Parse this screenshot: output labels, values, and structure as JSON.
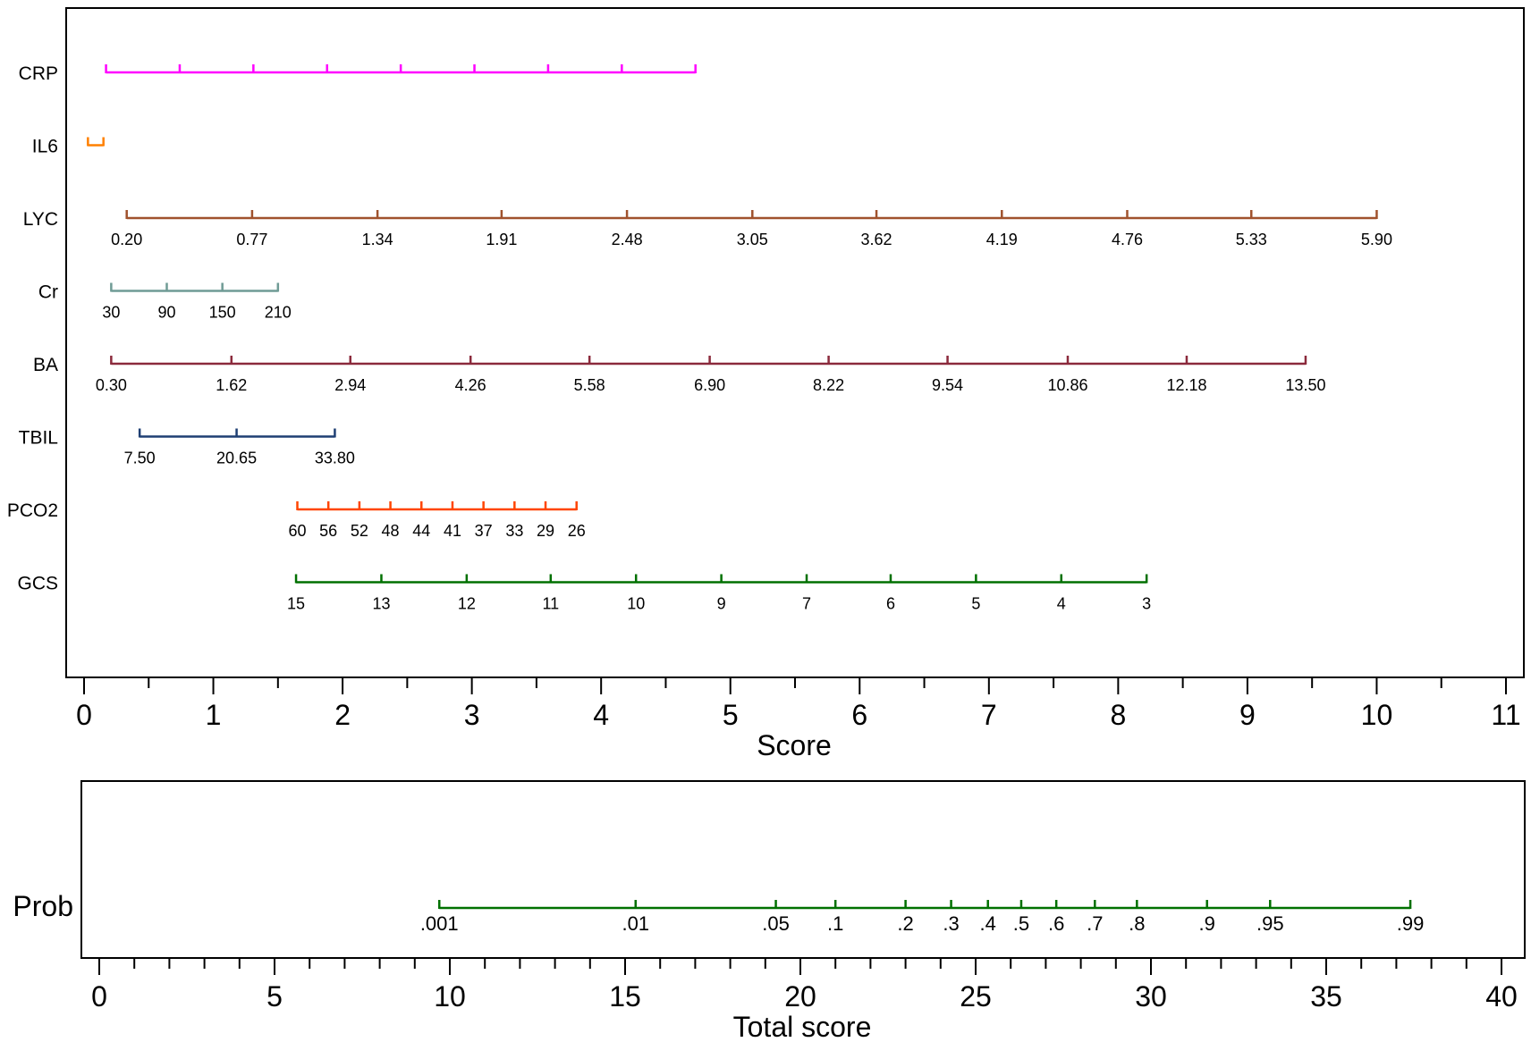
{
  "chart_data": [
    {
      "type": "nomogram",
      "xlabel": "Score",
      "xlim": [
        0,
        11
      ],
      "axis_ticks": [
        0,
        1,
        2,
        3,
        4,
        5,
        6,
        7,
        8,
        9,
        10,
        11
      ],
      "variables": [
        {
          "name": "CRP",
          "color": "#ff00ff",
          "ticks": [
            {
              "score": 0.17,
              "label": ""
            },
            {
              "score": 0.74,
              "label": ""
            },
            {
              "score": 1.31,
              "label": ""
            },
            {
              "score": 1.88,
              "label": ""
            },
            {
              "score": 2.45,
              "label": ""
            },
            {
              "score": 3.02,
              "label": ""
            },
            {
              "score": 3.59,
              "label": ""
            },
            {
              "score": 4.16,
              "label": ""
            },
            {
              "score": 4.73,
              "label": ""
            }
          ]
        },
        {
          "name": "IL6",
          "color": "#ff8000",
          "ticks": [
            {
              "score": 0.03,
              "label": ""
            },
            {
              "score": 0.15,
              "label": ""
            }
          ]
        },
        {
          "name": "LYC",
          "color": "#a0522d",
          "ticks": [
            {
              "score": 0.33,
              "label": "0.20"
            },
            {
              "score": 1.3,
              "label": "0.77"
            },
            {
              "score": 2.27,
              "label": "1.34"
            },
            {
              "score": 3.23,
              "label": "1.91"
            },
            {
              "score": 4.2,
              "label": "2.48"
            },
            {
              "score": 5.17,
              "label": "3.05"
            },
            {
              "score": 6.13,
              "label": "3.62"
            },
            {
              "score": 7.1,
              "label": "4.19"
            },
            {
              "score": 8.07,
              "label": "4.76"
            },
            {
              "score": 9.03,
              "label": "5.33"
            },
            {
              "score": 10.0,
              "label": "5.90"
            }
          ]
        },
        {
          "name": "Cr",
          "color": "#6f9b95",
          "ticks": [
            {
              "score": 0.21,
              "label": "30"
            },
            {
              "score": 0.64,
              "label": "90"
            },
            {
              "score": 1.07,
              "label": "150"
            },
            {
              "score": 1.5,
              "label": "210"
            }
          ]
        },
        {
          "name": "BA",
          "color": "#8b2a3c",
          "ticks": [
            {
              "score": 0.21,
              "label": "0.30"
            },
            {
              "score": 1.14,
              "label": "1.62"
            },
            {
              "score": 2.06,
              "label": "2.94"
            },
            {
              "score": 2.99,
              "label": "4.26"
            },
            {
              "score": 3.91,
              "label": "5.58"
            },
            {
              "score": 4.84,
              "label": "6.90"
            },
            {
              "score": 5.76,
              "label": "8.22"
            },
            {
              "score": 6.68,
              "label": "9.54"
            },
            {
              "score": 7.61,
              "label": "10.86"
            },
            {
              "score": 8.53,
              "label": "12.18"
            },
            {
              "score": 9.45,
              "label": "13.50"
            }
          ]
        },
        {
          "name": "TBIL",
          "color": "#1f3f73",
          "ticks": [
            {
              "score": 0.43,
              "label": "7.50"
            },
            {
              "score": 1.18,
              "label": "20.65"
            },
            {
              "score": 1.94,
              "label": "33.80"
            }
          ]
        },
        {
          "name": "PCO2",
          "color": "#ff4500",
          "ticks": [
            {
              "score": 1.65,
              "label": "60"
            },
            {
              "score": 1.89,
              "label": "56"
            },
            {
              "score": 2.13,
              "label": "52"
            },
            {
              "score": 2.37,
              "label": "48"
            },
            {
              "score": 2.61,
              "label": "44"
            },
            {
              "score": 2.85,
              "label": "41"
            },
            {
              "score": 3.09,
              "label": "37"
            },
            {
              "score": 3.33,
              "label": "33"
            },
            {
              "score": 3.57,
              "label": "29"
            },
            {
              "score": 3.81,
              "label": "26"
            }
          ]
        },
        {
          "name": "GCS",
          "color": "#007000",
          "ticks": [
            {
              "score": 1.64,
              "label": "15"
            },
            {
              "score": 2.3,
              "label": "13"
            },
            {
              "score": 2.96,
              "label": "12"
            },
            {
              "score": 3.61,
              "label": "11"
            },
            {
              "score": 4.27,
              "label": "10"
            },
            {
              "score": 4.93,
              "label": "9"
            },
            {
              "score": 5.59,
              "label": "7"
            },
            {
              "score": 6.24,
              "label": "6"
            },
            {
              "score": 6.9,
              "label": "5"
            },
            {
              "score": 7.56,
              "label": "4"
            },
            {
              "score": 8.22,
              "label": "3"
            }
          ]
        }
      ]
    },
    {
      "type": "nomogram",
      "xlabel": "Total score",
      "xlim": [
        0,
        40
      ],
      "axis_ticks": [
        0,
        5,
        10,
        15,
        20,
        25,
        30,
        35,
        40
      ],
      "minor_step": 1,
      "variables": [
        {
          "name": "Prob",
          "color": "#007000",
          "ticks": [
            {
              "score": 9.7,
              "label": ".001"
            },
            {
              "score": 15.3,
              "label": ".01"
            },
            {
              "score": 19.3,
              "label": ".05"
            },
            {
              "score": 21.0,
              "label": ".1"
            },
            {
              "score": 23.0,
              "label": ".2"
            },
            {
              "score": 24.3,
              "label": ".3"
            },
            {
              "score": 25.35,
              "label": ".4"
            },
            {
              "score": 26.3,
              "label": ".5"
            },
            {
              "score": 27.3,
              "label": ".6"
            },
            {
              "score": 28.4,
              "label": ".7"
            },
            {
              "score": 29.6,
              "label": ".8"
            },
            {
              "score": 31.6,
              "label": ".9"
            },
            {
              "score": 33.4,
              "label": ".95"
            },
            {
              "score": 37.4,
              "label": ".99"
            }
          ]
        }
      ]
    }
  ]
}
